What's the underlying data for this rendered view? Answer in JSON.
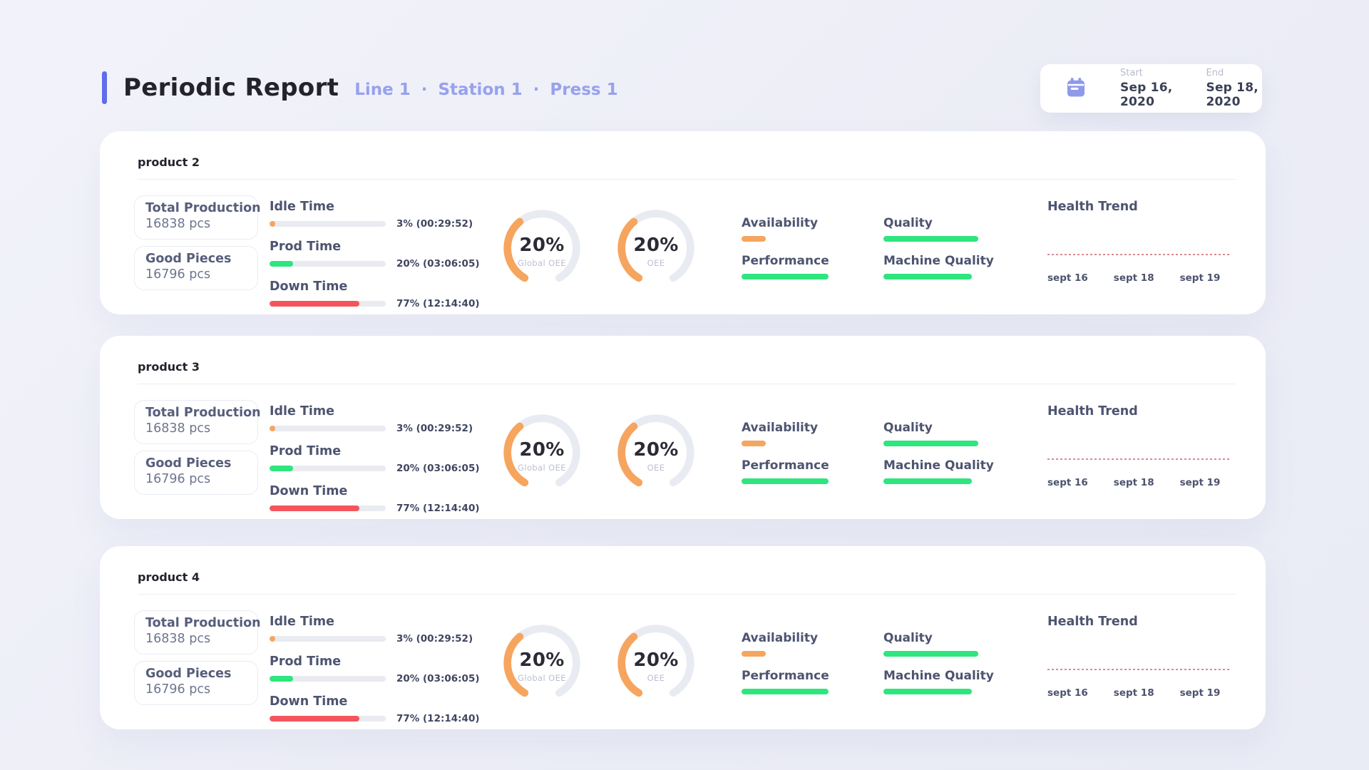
{
  "header": {
    "title": "Periodic Report",
    "breadcrumbs": [
      "Line 1",
      "Station 1",
      "Press 1"
    ],
    "separator": "·",
    "date_range": {
      "start_label": "Start",
      "start_value": "Sep 16, 2020",
      "end_label": "End",
      "end_value": "Sep 18, 2020"
    }
  },
  "colors": {
    "accent_bar": "#5F6CEC",
    "breadcrumb": "#97A1EE",
    "title_text": "#23232E",
    "label_slate": "#4D5470",
    "value_gray": "#6E758E",
    "muted_label": "#B7BBCB",
    "bar_track": "#E9EBF1",
    "gauge_track": "#E9EBF2",
    "orange": "#F6A55F",
    "green": "#2EE57E",
    "red": "#F4555C",
    "dotted_line": "#D98A92",
    "card_bg": "#FFFFFF"
  },
  "products": [
    {
      "name": "product 2",
      "stats": [
        {
          "label": "Total Production",
          "value": "16838 pcs"
        },
        {
          "label": "Good Pieces",
          "value": "16796 pcs"
        }
      ],
      "timers": [
        {
          "label": "Idle Time",
          "value": "3% (00:29:52)",
          "percent": 3,
          "color": "#F6A55F"
        },
        {
          "label": "Prod Time",
          "value": "20% (03:06:05)",
          "percent": 20,
          "color": "#2EE57E"
        },
        {
          "label": "Down Time",
          "value": "77% (12:14:40)",
          "percent": 77,
          "color": "#F4555C"
        }
      ],
      "gauges": [
        {
          "value": "20%",
          "label": "Global OEE",
          "percent": 20
        },
        {
          "value": "20%",
          "label": "OEE",
          "percent": 20
        }
      ],
      "kpis": [
        {
          "label": "Availability",
          "percent": 20,
          "color": "#F6A55F"
        },
        {
          "label": "Performance",
          "percent": 72,
          "color": "#2EE57E"
        },
        {
          "label": "Quality",
          "percent": 78,
          "color": "#2EE57E"
        },
        {
          "label": "Machine Quality",
          "percent": 73,
          "color": "#2EE57E"
        }
      ],
      "health": {
        "title": "Health Trend",
        "x_labels": [
          "sept 16",
          "sept 18",
          "sept 19"
        ]
      }
    },
    {
      "name": "product 3",
      "stats": [
        {
          "label": "Total Production",
          "value": "16838 pcs"
        },
        {
          "label": "Good Pieces",
          "value": "16796 pcs"
        }
      ],
      "timers": [
        {
          "label": "Idle Time",
          "value": "3% (00:29:52)",
          "percent": 3,
          "color": "#F6A55F"
        },
        {
          "label": "Prod Time",
          "value": "20% (03:06:05)",
          "percent": 20,
          "color": "#2EE57E"
        },
        {
          "label": "Down Time",
          "value": "77% (12:14:40)",
          "percent": 77,
          "color": "#F4555C"
        }
      ],
      "gauges": [
        {
          "value": "20%",
          "label": "Global OEE",
          "percent": 20
        },
        {
          "value": "20%",
          "label": "OEE",
          "percent": 20
        }
      ],
      "kpis": [
        {
          "label": "Availability",
          "percent": 20,
          "color": "#F6A55F"
        },
        {
          "label": "Performance",
          "percent": 72,
          "color": "#2EE57E"
        },
        {
          "label": "Quality",
          "percent": 78,
          "color": "#2EE57E"
        },
        {
          "label": "Machine Quality",
          "percent": 73,
          "color": "#2EE57E"
        }
      ],
      "health": {
        "title": "Health Trend",
        "x_labels": [
          "sept 16",
          "sept 18",
          "sept 19"
        ]
      }
    },
    {
      "name": "product 4",
      "stats": [
        {
          "label": "Total Production",
          "value": "16838 pcs"
        },
        {
          "label": "Good Pieces",
          "value": "16796 pcs"
        }
      ],
      "timers": [
        {
          "label": "Idle Time",
          "value": "3% (00:29:52)",
          "percent": 3,
          "color": "#F6A55F"
        },
        {
          "label": "Prod Time",
          "value": "20% (03:06:05)",
          "percent": 20,
          "color": "#2EE57E"
        },
        {
          "label": "Down Time",
          "value": "77% (12:14:40)",
          "percent": 77,
          "color": "#F4555C"
        }
      ],
      "gauges": [
        {
          "value": "20%",
          "label": "Global OEE",
          "percent": 20
        },
        {
          "value": "20%",
          "label": "OEE",
          "percent": 20
        }
      ],
      "kpis": [
        {
          "label": "Availability",
          "percent": 20,
          "color": "#F6A55F"
        },
        {
          "label": "Performance",
          "percent": 72,
          "color": "#2EE57E"
        },
        {
          "label": "Quality",
          "percent": 78,
          "color": "#2EE57E"
        },
        {
          "label": "Machine Quality",
          "percent": 73,
          "color": "#2EE57E"
        }
      ],
      "health": {
        "title": "Health Trend",
        "x_labels": [
          "sept 16",
          "sept 18",
          "sept 19"
        ]
      }
    }
  ]
}
